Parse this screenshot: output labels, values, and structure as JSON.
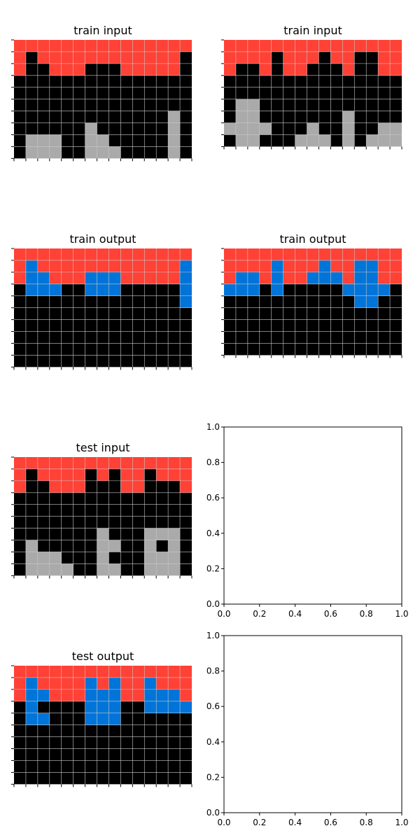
{
  "colors": {
    "0": "#000000",
    "1": "#0074D9",
    "2": "#FF4136",
    "5": "#AAAAAA",
    "grid_line": "#c8c8c8",
    "axis": "#000000"
  },
  "panels": [
    {
      "title": "train input",
      "grid": [
        [
          2,
          2,
          2,
          2,
          2,
          2,
          2,
          2,
          2,
          2,
          2,
          2,
          2,
          2,
          2
        ],
        [
          2,
          0,
          2,
          2,
          2,
          2,
          2,
          2,
          2,
          2,
          2,
          2,
          2,
          2,
          0
        ],
        [
          2,
          0,
          0,
          2,
          2,
          2,
          0,
          0,
          0,
          2,
          2,
          2,
          2,
          2,
          0
        ],
        [
          0,
          0,
          0,
          0,
          0,
          0,
          0,
          0,
          0,
          0,
          0,
          0,
          0,
          0,
          0
        ],
        [
          0,
          0,
          0,
          0,
          0,
          0,
          0,
          0,
          0,
          0,
          0,
          0,
          0,
          0,
          0
        ],
        [
          0,
          0,
          0,
          0,
          0,
          0,
          0,
          0,
          0,
          0,
          0,
          0,
          0,
          0,
          0
        ],
        [
          0,
          0,
          0,
          0,
          0,
          0,
          0,
          0,
          0,
          0,
          0,
          0,
          0,
          5,
          0
        ],
        [
          0,
          0,
          0,
          0,
          0,
          0,
          5,
          0,
          0,
          0,
          0,
          0,
          0,
          5,
          0
        ],
        [
          0,
          5,
          5,
          5,
          0,
          0,
          5,
          5,
          0,
          0,
          0,
          0,
          0,
          5,
          0
        ],
        [
          0,
          5,
          5,
          5,
          0,
          0,
          5,
          5,
          5,
          0,
          0,
          0,
          0,
          5,
          0
        ]
      ]
    },
    {
      "title": "train input",
      "grid": [
        [
          2,
          2,
          2,
          2,
          2,
          2,
          2,
          2,
          2,
          2,
          2,
          2,
          2,
          2,
          2
        ],
        [
          2,
          2,
          2,
          2,
          0,
          2,
          2,
          2,
          0,
          2,
          2,
          0,
          0,
          2,
          2
        ],
        [
          2,
          0,
          0,
          2,
          0,
          2,
          2,
          0,
          0,
          0,
          2,
          0,
          0,
          2,
          2
        ],
        [
          0,
          0,
          0,
          0,
          0,
          0,
          0,
          0,
          0,
          0,
          0,
          0,
          0,
          0,
          0
        ],
        [
          0,
          0,
          0,
          0,
          0,
          0,
          0,
          0,
          0,
          0,
          0,
          0,
          0,
          0,
          0
        ],
        [
          0,
          5,
          5,
          0,
          0,
          0,
          0,
          0,
          0,
          0,
          0,
          0,
          0,
          0,
          0
        ],
        [
          0,
          5,
          5,
          0,
          0,
          0,
          0,
          0,
          0,
          0,
          5,
          0,
          0,
          0,
          0
        ],
        [
          5,
          5,
          5,
          5,
          0,
          0,
          0,
          5,
          0,
          0,
          5,
          0,
          0,
          5,
          5
        ],
        [
          0,
          5,
          5,
          0,
          0,
          0,
          5,
          5,
          5,
          0,
          5,
          0,
          5,
          5,
          5
        ]
      ]
    },
    {
      "title": "train output",
      "grid": [
        [
          2,
          2,
          2,
          2,
          2,
          2,
          2,
          2,
          2,
          2,
          2,
          2,
          2,
          2,
          2
        ],
        [
          2,
          1,
          2,
          2,
          2,
          2,
          2,
          2,
          2,
          2,
          2,
          2,
          2,
          2,
          1
        ],
        [
          2,
          1,
          1,
          2,
          2,
          2,
          1,
          1,
          1,
          2,
          2,
          2,
          2,
          2,
          1
        ],
        [
          0,
          1,
          1,
          1,
          0,
          0,
          1,
          1,
          1,
          0,
          0,
          0,
          0,
          0,
          1
        ],
        [
          0,
          0,
          0,
          0,
          0,
          0,
          0,
          0,
          0,
          0,
          0,
          0,
          0,
          0,
          1
        ],
        [
          0,
          0,
          0,
          0,
          0,
          0,
          0,
          0,
          0,
          0,
          0,
          0,
          0,
          0,
          0
        ],
        [
          0,
          0,
          0,
          0,
          0,
          0,
          0,
          0,
          0,
          0,
          0,
          0,
          0,
          0,
          0
        ],
        [
          0,
          0,
          0,
          0,
          0,
          0,
          0,
          0,
          0,
          0,
          0,
          0,
          0,
          0,
          0
        ],
        [
          0,
          0,
          0,
          0,
          0,
          0,
          0,
          0,
          0,
          0,
          0,
          0,
          0,
          0,
          0
        ],
        [
          0,
          0,
          0,
          0,
          0,
          0,
          0,
          0,
          0,
          0,
          0,
          0,
          0,
          0,
          0
        ]
      ]
    },
    {
      "title": "train output",
      "grid": [
        [
          2,
          2,
          2,
          2,
          2,
          2,
          2,
          2,
          2,
          2,
          2,
          2,
          2,
          2,
          2
        ],
        [
          2,
          2,
          2,
          2,
          1,
          2,
          2,
          2,
          1,
          2,
          2,
          1,
          1,
          2,
          2
        ],
        [
          2,
          1,
          1,
          2,
          1,
          2,
          2,
          1,
          1,
          1,
          2,
          1,
          1,
          2,
          2
        ],
        [
          1,
          1,
          1,
          0,
          1,
          0,
          0,
          0,
          0,
          0,
          1,
          1,
          1,
          1,
          0
        ],
        [
          0,
          0,
          0,
          0,
          0,
          0,
          0,
          0,
          0,
          0,
          0,
          1,
          1,
          0,
          0
        ],
        [
          0,
          0,
          0,
          0,
          0,
          0,
          0,
          0,
          0,
          0,
          0,
          0,
          0,
          0,
          0
        ],
        [
          0,
          0,
          0,
          0,
          0,
          0,
          0,
          0,
          0,
          0,
          0,
          0,
          0,
          0,
          0
        ],
        [
          0,
          0,
          0,
          0,
          0,
          0,
          0,
          0,
          0,
          0,
          0,
          0,
          0,
          0,
          0
        ],
        [
          0,
          0,
          0,
          0,
          0,
          0,
          0,
          0,
          0,
          0,
          0,
          0,
          0,
          0,
          0
        ]
      ]
    },
    {
      "title": "test input",
      "grid": [
        [
          2,
          2,
          2,
          2,
          2,
          2,
          2,
          2,
          2,
          2,
          2,
          2,
          2,
          2,
          2
        ],
        [
          2,
          0,
          2,
          2,
          2,
          2,
          0,
          2,
          0,
          2,
          2,
          0,
          2,
          2,
          2
        ],
        [
          2,
          0,
          0,
          2,
          2,
          2,
          0,
          0,
          0,
          2,
          2,
          0,
          0,
          0,
          2
        ],
        [
          0,
          0,
          0,
          0,
          0,
          0,
          0,
          0,
          0,
          0,
          0,
          0,
          0,
          0,
          0
        ],
        [
          0,
          0,
          0,
          0,
          0,
          0,
          0,
          0,
          0,
          0,
          0,
          0,
          0,
          0,
          0
        ],
        [
          0,
          0,
          0,
          0,
          0,
          0,
          0,
          0,
          0,
          0,
          0,
          0,
          0,
          0,
          0
        ],
        [
          0,
          0,
          0,
          0,
          0,
          0,
          0,
          5,
          0,
          0,
          0,
          5,
          5,
          5,
          0
        ],
        [
          0,
          5,
          0,
          0,
          0,
          0,
          0,
          5,
          5,
          0,
          0,
          5,
          0,
          5,
          0
        ],
        [
          0,
          5,
          5,
          5,
          0,
          0,
          0,
          5,
          0,
          0,
          0,
          5,
          5,
          5,
          0
        ],
        [
          0,
          5,
          5,
          5,
          5,
          0,
          0,
          5,
          5,
          0,
          0,
          5,
          5,
          5,
          0
        ]
      ]
    },
    {
      "title": "",
      "empty": true,
      "xticks": [
        "0.0",
        "0.2",
        "0.4",
        "0.6",
        "0.8",
        "1.0"
      ],
      "yticks": [
        "0.0",
        "0.2",
        "0.4",
        "0.6",
        "0.8",
        "1.0"
      ]
    },
    {
      "title": "test output",
      "grid": [
        [
          2,
          2,
          2,
          2,
          2,
          2,
          2,
          2,
          2,
          2,
          2,
          2,
          2,
          2,
          2
        ],
        [
          2,
          1,
          2,
          2,
          2,
          2,
          1,
          2,
          1,
          2,
          2,
          1,
          2,
          2,
          2
        ],
        [
          2,
          1,
          1,
          2,
          2,
          2,
          1,
          1,
          1,
          2,
          2,
          1,
          1,
          1,
          2
        ],
        [
          0,
          1,
          0,
          0,
          0,
          0,
          1,
          1,
          1,
          0,
          0,
          1,
          1,
          1,
          1
        ],
        [
          0,
          1,
          1,
          0,
          0,
          0,
          1,
          1,
          1,
          0,
          0,
          0,
          0,
          0,
          0
        ],
        [
          0,
          0,
          0,
          0,
          0,
          0,
          0,
          0,
          0,
          0,
          0,
          0,
          0,
          0,
          0
        ],
        [
          0,
          0,
          0,
          0,
          0,
          0,
          0,
          0,
          0,
          0,
          0,
          0,
          0,
          0,
          0
        ],
        [
          0,
          0,
          0,
          0,
          0,
          0,
          0,
          0,
          0,
          0,
          0,
          0,
          0,
          0,
          0
        ],
        [
          0,
          0,
          0,
          0,
          0,
          0,
          0,
          0,
          0,
          0,
          0,
          0,
          0,
          0,
          0
        ],
        [
          0,
          0,
          0,
          0,
          0,
          0,
          0,
          0,
          0,
          0,
          0,
          0,
          0,
          0,
          0
        ]
      ]
    },
    {
      "title": "",
      "empty": true,
      "xticks": [
        "0.0",
        "0.2",
        "0.4",
        "0.6",
        "0.8",
        "1.0"
      ],
      "yticks": [
        "0.0",
        "0.2",
        "0.4",
        "0.6",
        "0.8",
        "1.0"
      ]
    }
  ]
}
